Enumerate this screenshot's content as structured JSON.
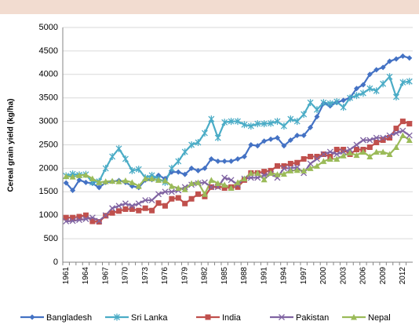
{
  "chart_data": {
    "type": "line",
    "y_label": "Cereal grain yield (kg/ha)",
    "categories": [
      "1961",
      null,
      null,
      "1964",
      null,
      null,
      "1967",
      null,
      null,
      "1970",
      null,
      null,
      "1973",
      null,
      null,
      "1976",
      null,
      null,
      "1979",
      null,
      null,
      "1982",
      null,
      null,
      "1985",
      null,
      null,
      "1988",
      null,
      null,
      "1991",
      null,
      null,
      "1994",
      null,
      null,
      "1997",
      null,
      null,
      "2000",
      null,
      null,
      "2003",
      null,
      null,
      "2006",
      null,
      null,
      "2009",
      null,
      null,
      "2012",
      null
    ],
    "ylim": [
      0,
      5000
    ],
    "yticks": [
      0,
      500,
      1000,
      1500,
      2000,
      2500,
      3000,
      3500,
      4000,
      4500,
      5000
    ],
    "grid": true,
    "legend": "bottom",
    "series": [
      {
        "name": "Bangladesh",
        "color": "#4472c4",
        "marker": "diamond",
        "values": [
          1690,
          1530,
          1750,
          1700,
          1680,
          1590,
          1700,
          1720,
          1740,
          1700,
          1620,
          1590,
          1750,
          1760,
          1850,
          1780,
          1920,
          1920,
          1870,
          2000,
          1950,
          2000,
          2200,
          2150,
          2150,
          2150,
          2200,
          2250,
          2500,
          2480,
          2580,
          2620,
          2650,
          2480,
          2600,
          2700,
          2700,
          2870,
          3100,
          3380,
          3330,
          3400,
          3450,
          3500,
          3700,
          3780,
          4000,
          4100,
          4150,
          4280,
          4330,
          4390,
          4350
        ]
      },
      {
        "name": "Sri Lanka",
        "color": "#4bacc6",
        "marker": "asterisk",
        "values": [
          1840,
          1880,
          1860,
          1870,
          1700,
          1720,
          2000,
          2250,
          2420,
          2200,
          1950,
          1980,
          1800,
          1850,
          1780,
          1700,
          2000,
          2150,
          2350,
          2500,
          2550,
          2750,
          3050,
          2650,
          2980,
          3000,
          3000,
          2930,
          2900,
          2950,
          2950,
          2960,
          3000,
          2900,
          3050,
          3000,
          3150,
          3400,
          3250,
          3400,
          3380,
          3420,
          3300,
          3500,
          3550,
          3600,
          3700,
          3650,
          3800,
          3950,
          3520,
          3830,
          3850
        ]
      },
      {
        "name": "India",
        "color": "#c0504d",
        "marker": "square",
        "values": [
          950,
          950,
          970,
          1000,
          870,
          860,
          990,
          1050,
          1090,
          1130,
          1130,
          1100,
          1150,
          1100,
          1260,
          1200,
          1350,
          1370,
          1250,
          1350,
          1450,
          1400,
          1600,
          1620,
          1580,
          1600,
          1600,
          1750,
          1900,
          1900,
          1930,
          1950,
          2050,
          2050,
          2100,
          2120,
          2200,
          2250,
          2250,
          2300,
          2250,
          2400,
          2400,
          2300,
          2400,
          2400,
          2450,
          2550,
          2600,
          2650,
          2850,
          3000,
          2950
        ]
      },
      {
        "name": "Pakistan",
        "color": "#8064a2",
        "marker": "x",
        "values": [
          870,
          880,
          900,
          920,
          950,
          880,
          1000,
          1150,
          1200,
          1250,
          1200,
          1250,
          1320,
          1320,
          1450,
          1500,
          1500,
          1530,
          1600,
          1650,
          1680,
          1700,
          1600,
          1600,
          1800,
          1750,
          1650,
          1780,
          1800,
          1800,
          1850,
          1880,
          1800,
          2000,
          2000,
          2020,
          1900,
          2100,
          2200,
          2300,
          2350,
          2300,
          2350,
          2400,
          2500,
          2600,
          2600,
          2650,
          2650,
          2700,
          2750,
          2800,
          2700
        ]
      },
      {
        "name": "Nepal",
        "color": "#9bbb59",
        "marker": "triangle",
        "values": [
          1830,
          1820,
          1850,
          1860,
          1780,
          1700,
          1720,
          1730,
          1720,
          1740,
          1700,
          1620,
          1780,
          1780,
          1750,
          1740,
          1620,
          1580,
          1550,
          1680,
          1700,
          1450,
          1750,
          1680,
          1650,
          1580,
          1700,
          1780,
          1900,
          1900,
          1760,
          1900,
          1870,
          1880,
          1950,
          1960,
          1950,
          2000,
          2050,
          2150,
          2200,
          2200,
          2270,
          2330,
          2280,
          2350,
          2250,
          2350,
          2350,
          2300,
          2450,
          2700,
          2600
        ]
      }
    ]
  }
}
